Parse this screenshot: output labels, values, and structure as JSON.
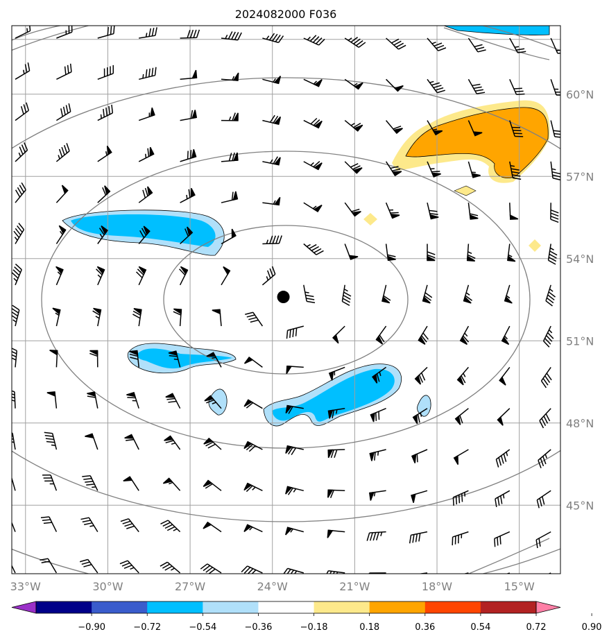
{
  "title": "2024082000 F036",
  "map": {
    "longitude_labels": [
      "33°W",
      "30°W",
      "27°W",
      "24°W",
      "21°W",
      "18°W",
      "15°W"
    ],
    "latitude_labels": [
      "45°N",
      "48°N",
      "51°N",
      "54°N",
      "57°N",
      "60°N"
    ],
    "longitudes": [
      -33,
      -30,
      -27,
      -24,
      -21,
      -18,
      -15
    ],
    "latitudes": [
      45,
      48,
      51,
      54,
      57,
      60
    ],
    "lon_range": [
      -33.5,
      -13.5
    ],
    "lat_range": [
      42.5,
      62.5
    ],
    "center_marker": {
      "lon": -23.6,
      "lat": 52.6
    },
    "grid_color": "#a0a0a0",
    "contour_color": "#808080"
  },
  "colorbar": {
    "tick_labels": [
      "−0.90",
      "−0.72",
      "−0.54",
      "−0.36",
      "−0.18",
      "0.18",
      "0.36",
      "0.54",
      "0.72",
      "0.90"
    ],
    "ticks": [
      -0.9,
      -0.72,
      -0.54,
      -0.36,
      -0.18,
      0.18,
      0.36,
      0.54,
      0.72,
      0.9
    ],
    "colors": [
      "#9a30c8",
      "#000088",
      "#3a5ccc",
      "#00bfff",
      "#b0e0fa",
      "#ffffff",
      "#fde98b",
      "#ffa500",
      "#ff4500",
      "#b22222",
      "#ff7fa6"
    ]
  }
}
